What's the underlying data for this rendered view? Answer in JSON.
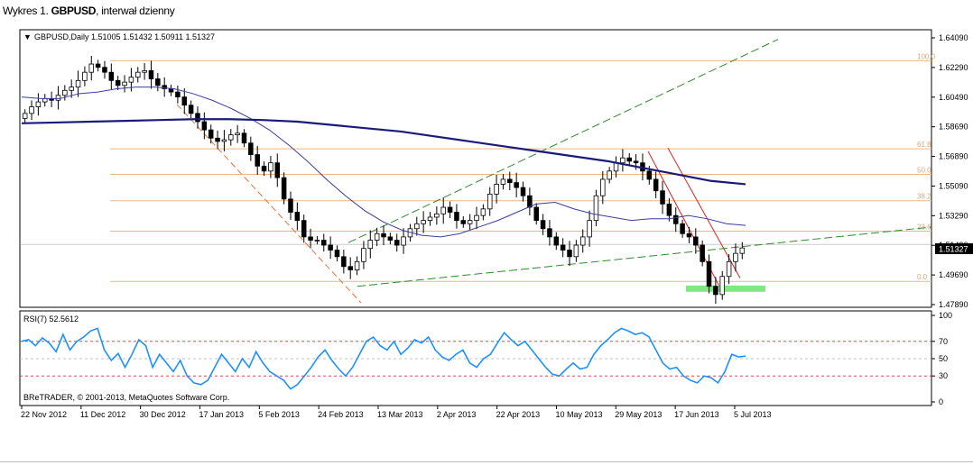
{
  "caption": {
    "prefix": "Wykres 1. ",
    "symbol": "GBPUSD",
    "suffix": ", interwał dzienny"
  },
  "chart_header": {
    "symbol_line": "GBPUSD,Daily  1.51005 1.51432 1.50911 1.51327"
  },
  "current_price_label": "1.51327",
  "copyright": "BReTRADER, © 2001-2013, MetaQuotes Software Corp.",
  "rsi_label": "RSI(7) 52.5612",
  "colors": {
    "bull_candle": "#ffffff",
    "bear_candle": "#000000",
    "ma_fast": "#3c3c9c",
    "ma_slow": "#1a1a7a",
    "fib": "#e6b98a",
    "trend_green": "#2e8b2e",
    "trend_red": "#e02020",
    "trend_orange": "#f07030",
    "rsi": "#1e90ff",
    "rsi_levels": "#d83030",
    "highlight": "#80e880"
  },
  "chart_data": [
    {
      "type": "candlestick",
      "title": "GBPUSD,Daily",
      "ylim": [
        1.4789,
        1.6409
      ],
      "y_ticks": [
        "1.64090",
        "1.62290",
        "1.60490",
        "1.58690",
        "1.56890",
        "1.55090",
        "1.53290",
        "1.51490",
        "1.49690",
        "1.47890"
      ],
      "x_ticks": [
        "22 Nov 2012",
        "11 Dec 2012",
        "30 Dec 2012",
        "17 Jan 2013",
        "5 Feb 2013",
        "24 Feb 2013",
        "13 Mar 2013",
        "2 Apr 2013",
        "22 Apr 2013",
        "10 May 2013",
        "29 May 2013",
        "17 Jun 2013",
        "5 Jul 2013"
      ],
      "close_series": [
        1.595,
        1.599,
        1.602,
        1.604,
        1.603,
        1.606,
        1.609,
        1.611,
        1.615,
        1.62,
        1.625,
        1.623,
        1.62,
        1.615,
        1.612,
        1.614,
        1.617,
        1.62,
        1.621,
        1.616,
        1.612,
        1.61,
        1.608,
        1.605,
        1.6,
        1.595,
        1.59,
        1.585,
        1.58,
        1.578,
        1.579,
        1.582,
        1.583,
        1.577,
        1.57,
        1.563,
        1.56,
        1.565,
        1.556,
        1.543,
        1.535,
        1.53,
        1.52,
        1.518,
        1.518,
        1.515,
        1.512,
        1.508,
        1.502,
        1.5,
        1.505,
        1.513,
        1.518,
        1.522,
        1.52,
        1.518,
        1.515,
        1.52,
        1.525,
        1.528,
        1.53,
        1.532,
        1.534,
        1.538,
        1.535,
        1.53,
        1.528,
        1.53,
        1.533,
        1.537,
        1.546,
        1.552,
        1.555,
        1.553,
        1.55,
        1.545,
        1.538,
        1.53,
        1.525,
        1.52,
        1.515,
        1.512,
        1.508,
        1.515,
        1.52,
        1.53,
        1.545,
        1.555,
        1.56,
        1.565,
        1.568,
        1.566,
        1.565,
        1.56,
        1.555,
        1.548,
        1.54,
        1.533,
        1.528,
        1.522,
        1.52,
        1.515,
        1.505,
        1.49,
        1.485,
        1.496,
        1.505,
        1.51,
        1.5133
      ],
      "series": [
        {
          "name": "MA fast",
          "values": [
            1.605,
            1.604,
            1.604,
            1.607,
            1.608,
            1.61,
            1.611,
            1.611,
            1.61,
            1.607,
            1.603,
            1.598,
            1.592,
            1.585,
            1.576,
            1.566,
            1.555,
            1.545,
            1.536,
            1.529,
            1.524,
            1.521,
            1.52,
            1.522,
            1.526,
            1.53,
            1.535,
            1.54,
            1.541,
            1.537,
            1.534,
            1.532,
            1.53,
            1.531,
            1.531,
            1.533,
            1.531,
            1.528,
            1.527
          ]
        },
        {
          "name": "MA slow",
          "values": [
            1.589,
            1.5895,
            1.59,
            1.5905,
            1.591,
            1.5915,
            1.5915,
            1.591,
            1.59,
            1.588,
            1.586,
            1.584,
            1.581,
            1.578,
            1.575,
            1.572,
            1.569,
            1.566,
            1.562,
            1.558,
            1.554,
            1.552
          ]
        }
      ],
      "fibonacci_levels": [
        {
          "label": "100.0",
          "price": 1.627
        },
        {
          "label": "61.8",
          "price": 1.5735
        },
        {
          "label": "50.0",
          "price": 1.558
        },
        {
          "label": "38.2",
          "price": 1.542
        },
        {
          "label": "23.6",
          "price": 1.5235
        },
        {
          "label": "0.0",
          "price": 1.493
        }
      ]
    },
    {
      "type": "line",
      "title": "RSI(7) 52.5612",
      "ylim": [
        0,
        100
      ],
      "y_ticks": [
        "100",
        "70",
        "50",
        "30",
        "0"
      ],
      "levels": [
        70,
        50,
        30
      ],
      "series": [
        {
          "name": "RSI(7)",
          "values": [
            70,
            72,
            65,
            74,
            68,
            58,
            78,
            60,
            70,
            75,
            82,
            85,
            60,
            48,
            56,
            40,
            55,
            72,
            65,
            40,
            55,
            45,
            35,
            48,
            30,
            22,
            20,
            25,
            40,
            55,
            45,
            35,
            50,
            40,
            58,
            45,
            35,
            30,
            25,
            15,
            20,
            30,
            40,
            52,
            60,
            48,
            38,
            30,
            40,
            55,
            70,
            75,
            65,
            60,
            70,
            55,
            62,
            72,
            68,
            75,
            60,
            52,
            48,
            55,
            60,
            45,
            40,
            50,
            55,
            68,
            80,
            72,
            65,
            70,
            60,
            50,
            40,
            32,
            30,
            38,
            45,
            38,
            40,
            55,
            65,
            72,
            80,
            85,
            82,
            78,
            80,
            75,
            60,
            45,
            38,
            40,
            30,
            25,
            22,
            30,
            28,
            22,
            35,
            55,
            52,
            53
          ]
        }
      ]
    }
  ]
}
